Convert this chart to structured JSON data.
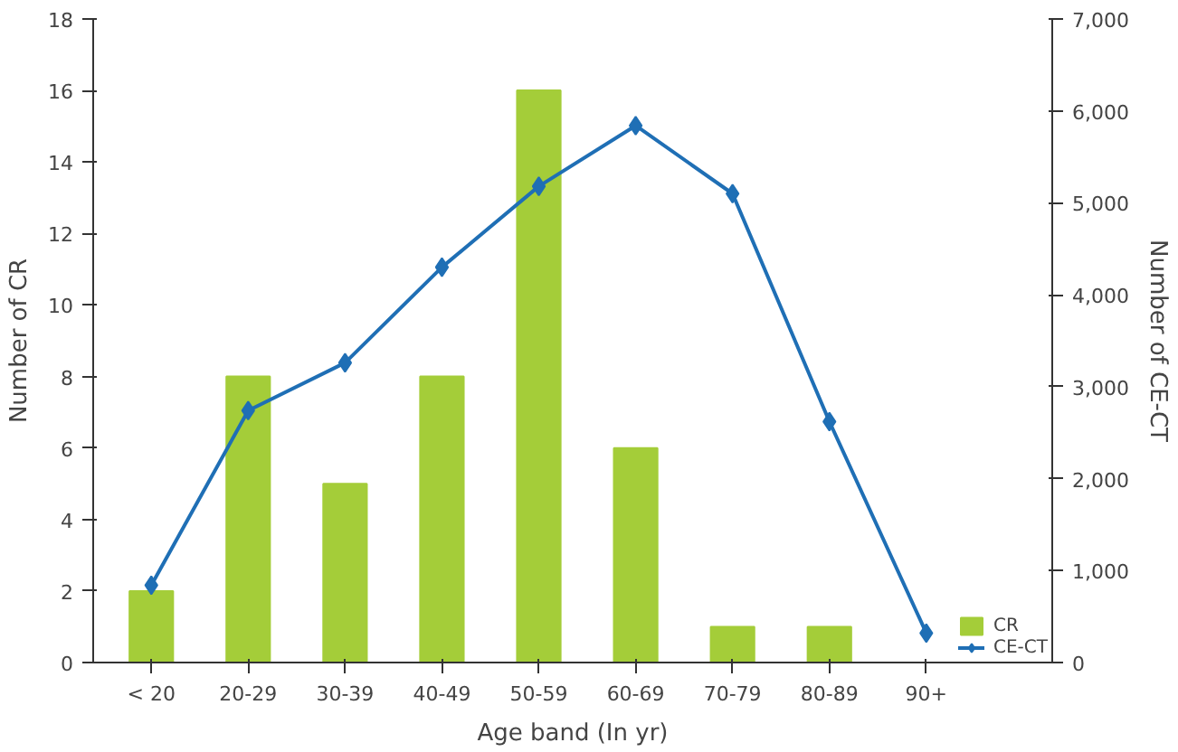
{
  "chart_data": {
    "type": "bar",
    "xlabel": "Age band (In yr)",
    "ylabel": "Number of CR",
    "y2label": "Number of CE-CT",
    "categories": [
      "< 20",
      "20-29",
      "30-39",
      "40-49",
      "50-59",
      "60-69",
      "70-79",
      "80-89",
      "90+"
    ],
    "series": [
      {
        "name": "CR",
        "color": "#a4cd39",
        "values": [
          2,
          8,
          5,
          8,
          16,
          6,
          1,
          1,
          null
        ]
      },
      {
        "name": "CE-CT",
        "type": "line",
        "axis": "y2",
        "color": "#1f6fb5",
        "marker": "diamond",
        "values": [
          840,
          2740,
          3260,
          4300,
          5180,
          5840,
          5100,
          2620,
          320
        ]
      }
    ],
    "ylim": [
      0,
      18
    ],
    "yticks": [
      0,
      2,
      4,
      6,
      8,
      10,
      12,
      14,
      16,
      18
    ],
    "y2lim": [
      0,
      7000
    ],
    "y2ticks": [
      0,
      {
        "value": 1000,
        "label": "1,000"
      },
      {
        "value": 2000,
        "label": "2,000"
      },
      {
        "value": 3000,
        "label": "3,000"
      },
      {
        "value": 4000,
        "label": "4,000"
      },
      {
        "value": 5000,
        "label": "5,000"
      },
      {
        "value": 6000,
        "label": "6,000"
      },
      {
        "value": 7000,
        "label": "7,000"
      }
    ],
    "grid": false,
    "legend": "bottom right"
  }
}
